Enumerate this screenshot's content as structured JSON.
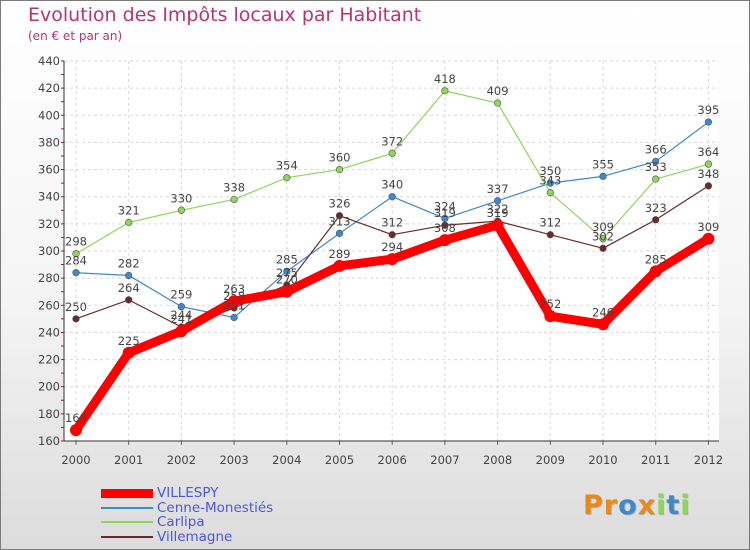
{
  "chart_data": {
    "type": "line",
    "title": "Evolution des Impôts locaux par Habitant",
    "subtitle": "(en € et par an)",
    "xlabel": "",
    "ylabel": "",
    "categories": [
      "2000",
      "2001",
      "2002",
      "2003",
      "2004",
      "2005",
      "2006",
      "2007",
      "2008",
      "2009",
      "2010",
      "2011",
      "2012"
    ],
    "ylim": [
      160,
      440
    ],
    "yticks": [
      160,
      180,
      200,
      220,
      240,
      260,
      280,
      300,
      320,
      340,
      360,
      380,
      400,
      420,
      440
    ],
    "grid": true,
    "legend_position": "bottom-left",
    "series": [
      {
        "name": "VILLESPY",
        "color": "#ff0000",
        "values": [
          168,
          225,
          241,
          263,
          270,
          289,
          294,
          308,
          319,
          252,
          246,
          285,
          309
        ]
      },
      {
        "name": "Cenne-Monestiés",
        "color": "#3e89c9",
        "values": [
          284,
          282,
          259,
          251,
          285,
          313,
          340,
          324,
          337,
          350,
          355,
          366,
          395
        ]
      },
      {
        "name": "Carlipa",
        "color": "#8cd65a",
        "values": [
          298,
          321,
          330,
          338,
          354,
          360,
          372,
          418,
          409,
          343,
          309,
          353,
          364
        ]
      },
      {
        "name": "Villemagne",
        "color": "#6b2a2a",
        "values": [
          250,
          264,
          244,
          258,
          275,
          326,
          312,
          319,
          322,
          312,
          302,
          323,
          348
        ]
      }
    ],
    "data_labels": [
      [
        "168",
        "225",
        "241",
        "263",
        "270",
        "289",
        "294",
        "308",
        "319",
        "252",
        "246",
        "285",
        "309"
      ],
      [
        "284",
        "282",
        "259",
        "251",
        "285",
        "313",
        "340",
        "324",
        "337",
        "350",
        "355",
        "366",
        "395"
      ],
      [
        "298",
        "321",
        "330",
        "338",
        "354",
        "360",
        "372",
        "418",
        "409",
        "343",
        "309",
        "353",
        "364"
      ],
      [
        "250",
        "264",
        "244",
        "258",
        "275",
        "326",
        "312",
        "319",
        "322",
        "312",
        "302",
        "323",
        "348"
      ]
    ]
  },
  "logo": {
    "text": "Proxiti",
    "letters": [
      "P",
      "r",
      "o",
      "x",
      "i",
      "t",
      "i"
    ],
    "colors": [
      "#e8891a",
      "#e8891a",
      "#3e89c9",
      "#e8891a",
      "#8cd65a",
      "#3e89c9",
      "#8cd65a"
    ]
  }
}
